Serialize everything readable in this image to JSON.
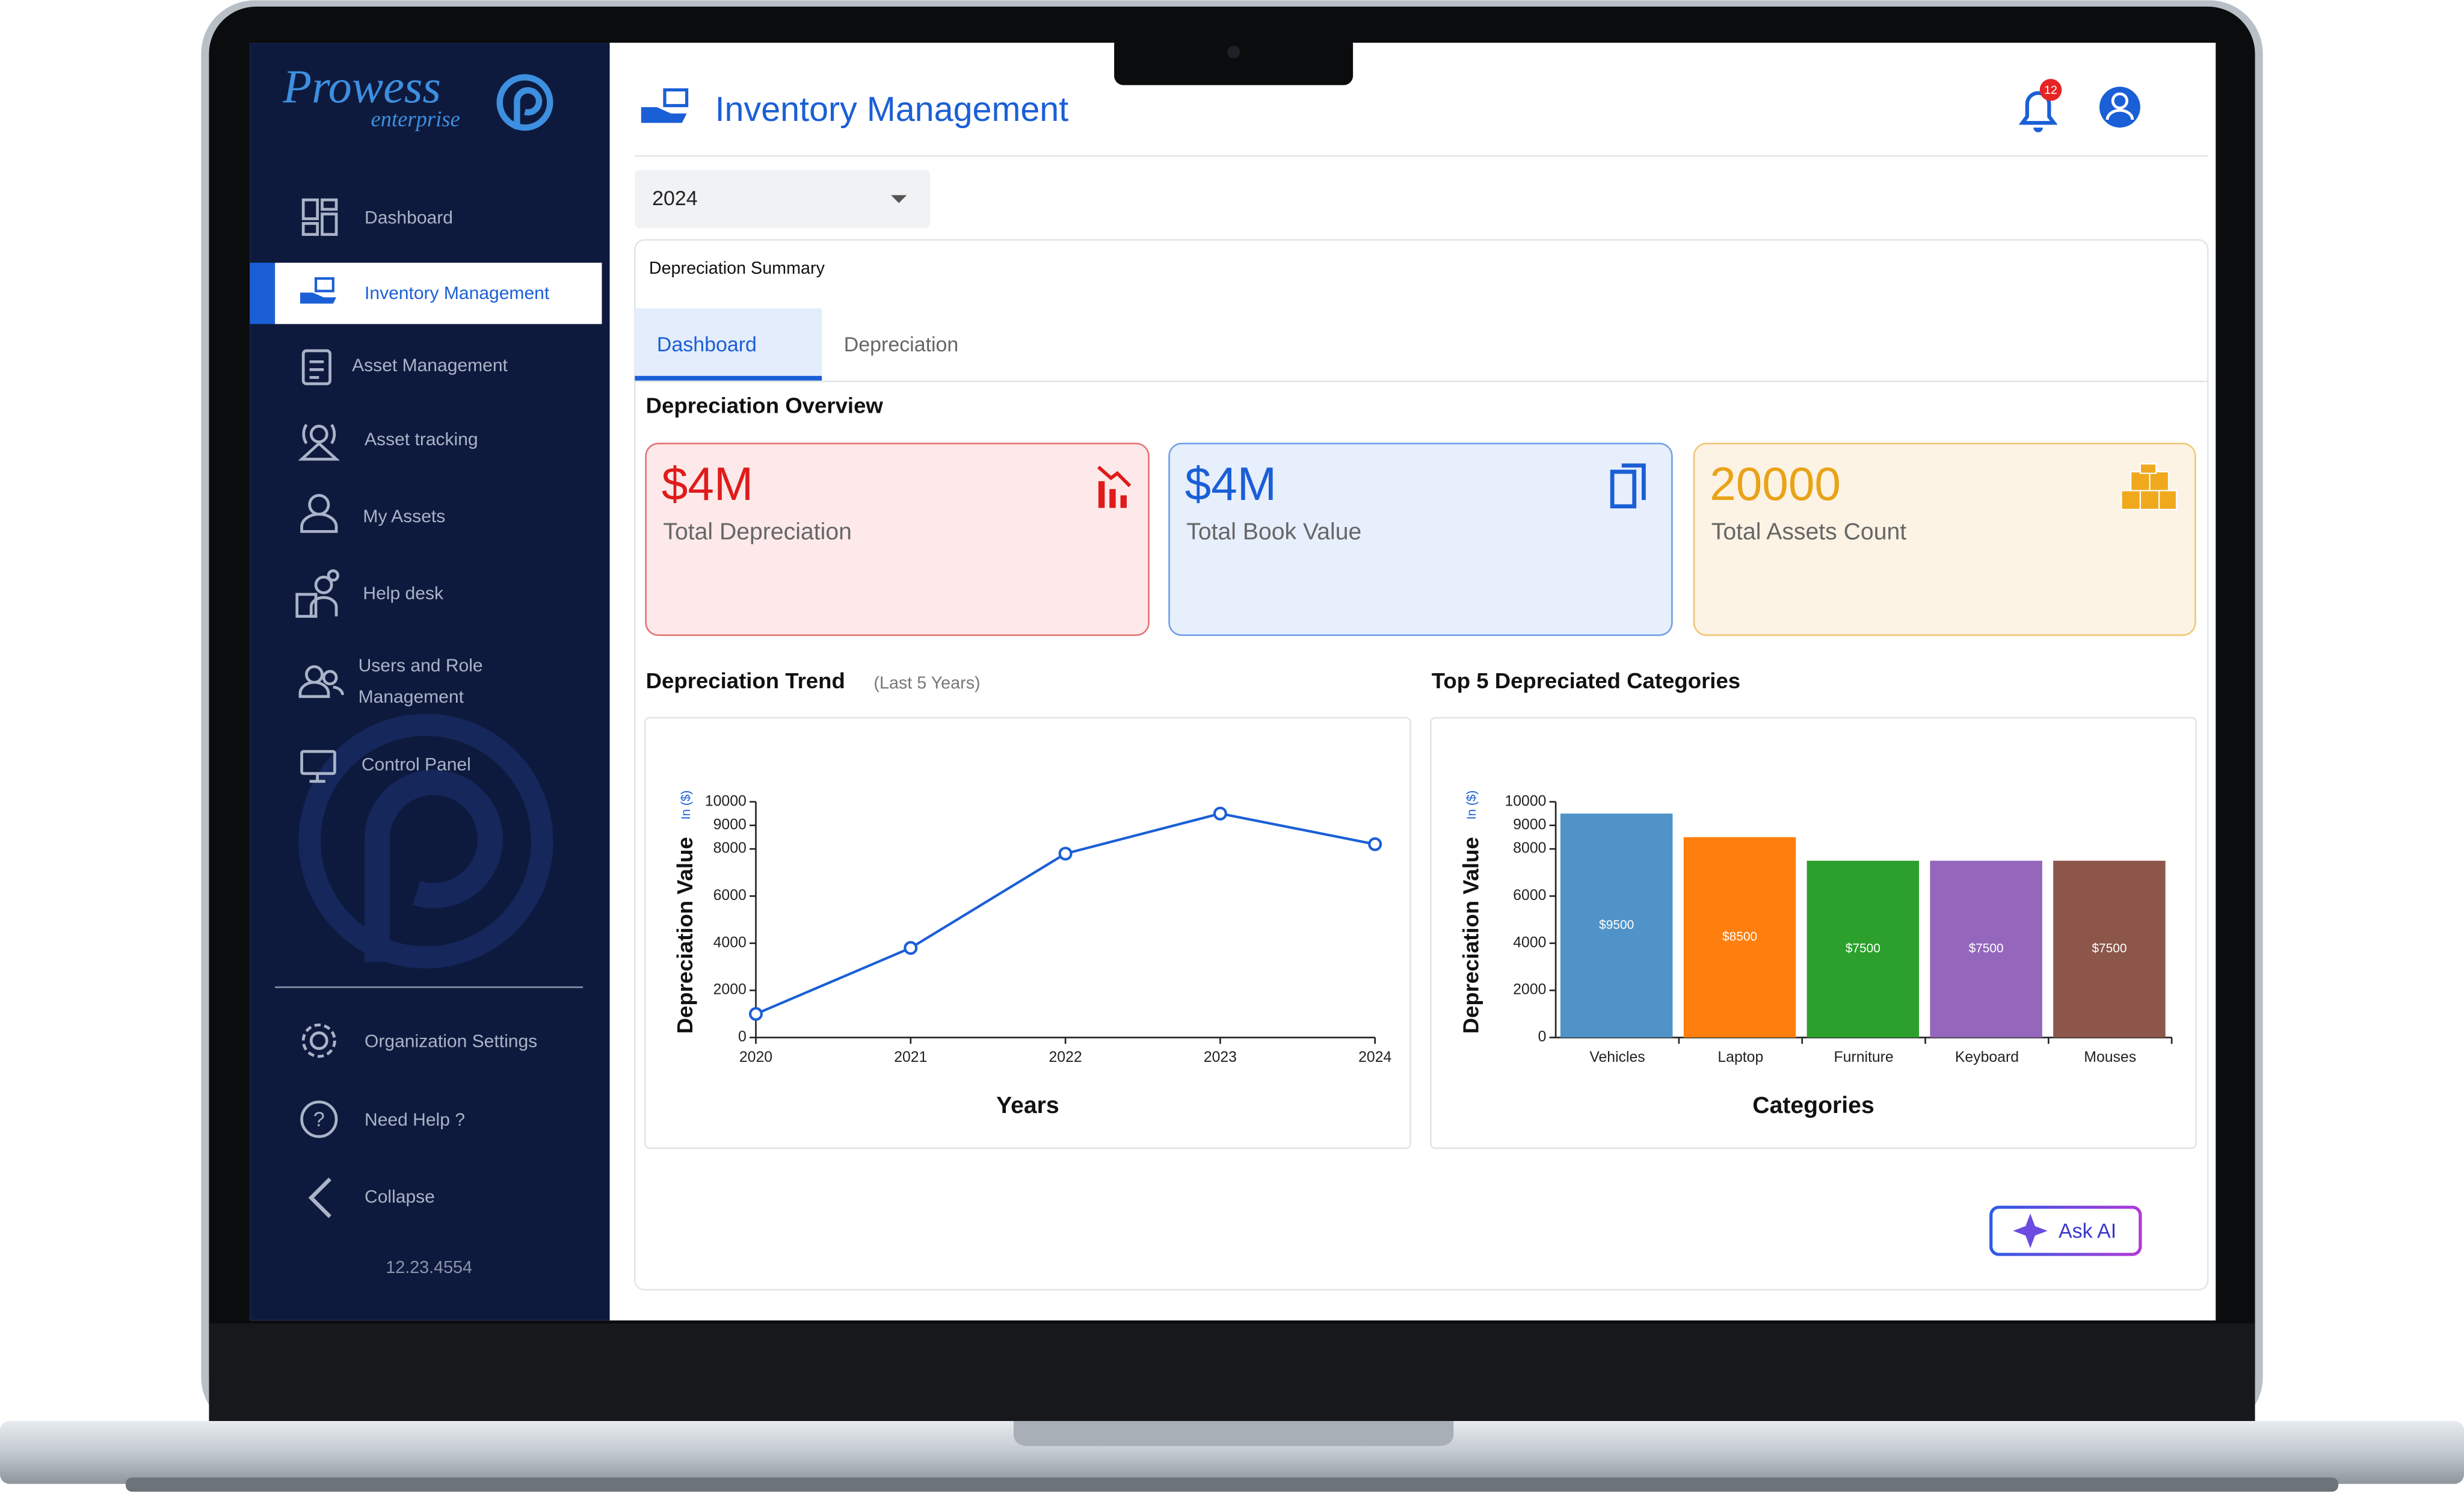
{
  "sidebar": {
    "logo": "Prowess",
    "logo_sub": "enterprise",
    "menu": [
      "Dashboard",
      "Inventory Management",
      "Asset Management",
      "Asset tracking",
      "My Assets",
      "Help desk",
      "Users and Role Management",
      "Control Panel"
    ],
    "bottom_menu": [
      "Organization Settings",
      "Need Help ?",
      "Collapse"
    ],
    "version": "12.23.4554"
  },
  "header": {
    "title": "Inventory Management",
    "notifications": 12
  },
  "filter": {
    "year": "2024"
  },
  "panel": {
    "title": "Depreciation Summary",
    "tabs": [
      "Dashboard",
      "Depreciation"
    ],
    "section_title": "Depreciation Overview",
    "kpis": [
      {
        "value": "$4M",
        "label": "Total Depreciation"
      },
      {
        "value": "$4M",
        "label": "Total Book Value"
      },
      {
        "value": "20000",
        "label": "Total Assets Count"
      }
    ],
    "ask_ai": "Ask AI"
  },
  "chart_data": [
    {
      "type": "line",
      "title": "Depreciation Trend",
      "subtitle": "(Last 5 Years)",
      "categories": [
        "2020",
        "2021",
        "2022",
        "2023",
        "2024"
      ],
      "values": [
        1000,
        3800,
        7800,
        9500,
        8200
      ],
      "color": "#1a5fd6",
      "y_label": "Depreciation Value",
      "y_unit": "In ($)",
      "x_label": "Years",
      "ylim": [
        0,
        10000
      ],
      "yticks": [
        0,
        2000,
        4000,
        6000,
        8000,
        9000,
        10000
      ]
    },
    {
      "type": "bar",
      "title": "Top 5 Depreciated Categories",
      "categories": [
        "Vehicles",
        "Laptop",
        "Furniture",
        "Keyboard",
        "Mouses"
      ],
      "values": [
        9500,
        8500,
        7500,
        7500,
        7500
      ],
      "value_labels": [
        "$9500",
        "$8500",
        "$7500",
        "$7500",
        "$7500"
      ],
      "colors": [
        "#4f93c8",
        "#ff7f0e",
        "#2ca02c",
        "#9467bd",
        "#8c564b"
      ],
      "y_label": "Depreciation Value",
      "y_unit": "In ($)",
      "x_label": "Categories",
      "ylim": [
        0,
        10000
      ],
      "yticks": [
        0,
        2000,
        4000,
        6000,
        8000,
        9000,
        10000
      ]
    }
  ]
}
